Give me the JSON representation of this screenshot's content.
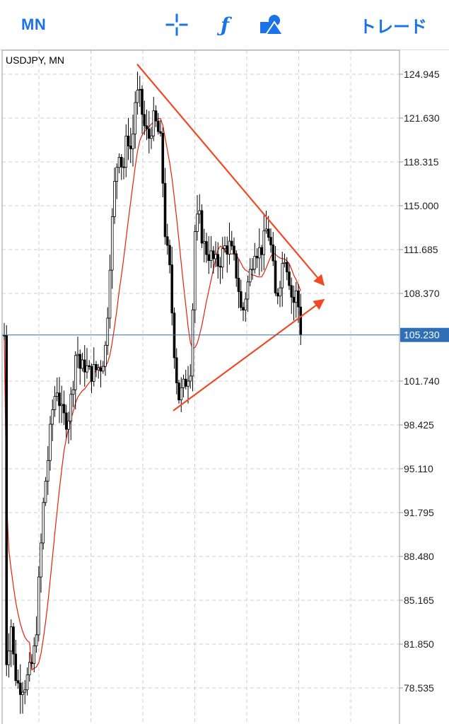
{
  "toolbar": {
    "period_label": "MN",
    "crosshair_icon": "crosshair-icon",
    "indicators_icon": "function-icon",
    "indicators_glyph": "ƒ",
    "objects_icon": "shapes-icon",
    "trade_label": "トレード",
    "accent_color": "#1a73e8"
  },
  "chart_data": {
    "type": "candlestick",
    "title": "USDJPY, MN",
    "symbol": "USDJPY",
    "timeframe": "MN",
    "current_price": "105.230",
    "current_price_value": 105.23,
    "price_ticks": [
      "124.945",
      "121.630",
      "118.315",
      "115.000",
      "111.685",
      "108.370",
      "105.230",
      "101.740",
      "98.425",
      "95.110",
      "91.795",
      "88.480",
      "85.165",
      "81.850",
      "78.535"
    ],
    "grid": true,
    "colors": {
      "bull": "#ffffff",
      "bear": "#000000",
      "ma": "#e8200a",
      "trendline": "#f04a24",
      "price_line": "#2f6fb6"
    },
    "candles": [],
    "ma_series": [],
    "annotations": [
      {
        "type": "trendline-arrow",
        "from": [
          0,
          125.7
        ],
        "to": [
          0,
          109.0
        ]
      },
      {
        "type": "trendline-arrow",
        "from": [
          0,
          99.5
        ],
        "to": [
          0,
          107.9
        ]
      }
    ]
  }
}
